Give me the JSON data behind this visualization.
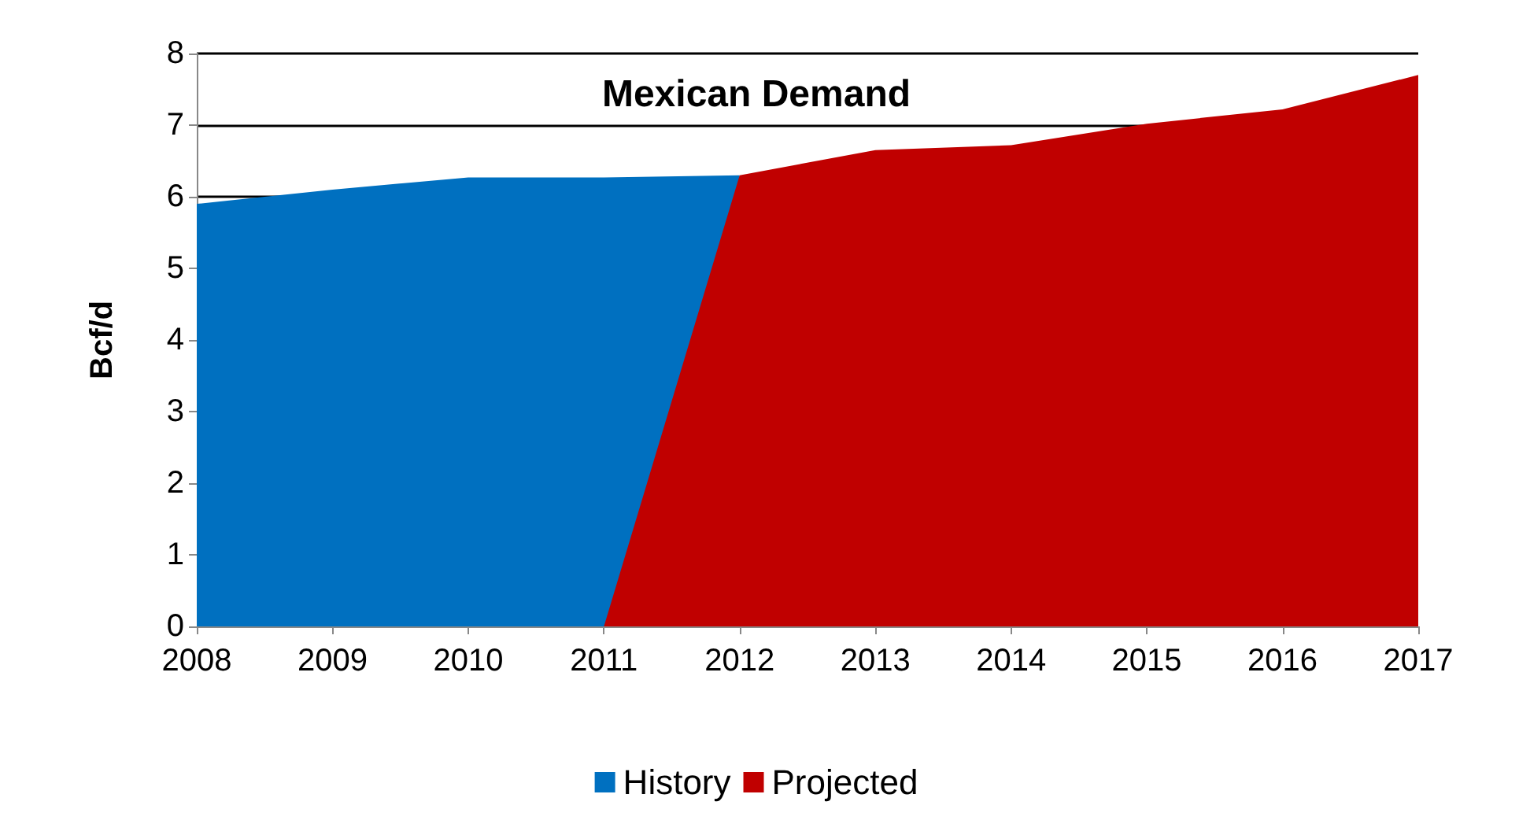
{
  "chart_data": {
    "type": "area",
    "title": "Mexican Demand",
    "ylabel": "Bcf/d",
    "categories": [
      "2008",
      "2009",
      "2010",
      "2011",
      "2012",
      "2013",
      "2014",
      "2015",
      "2016",
      "2017"
    ],
    "series": [
      {
        "name": "History",
        "color": "#0070c0",
        "values": [
          5.9,
          6.1,
          6.27,
          6.27,
          6.3,
          null,
          null,
          null,
          null,
          null
        ]
      },
      {
        "name": "Projected",
        "color": "#c00000",
        "values": [
          null,
          null,
          null,
          0,
          6.3,
          6.65,
          6.72,
          7.02,
          7.22,
          7.7
        ]
      }
    ],
    "ylim": [
      0,
      8
    ],
    "yticks": [
      0,
      1,
      2,
      3,
      4,
      5,
      6,
      7,
      8
    ],
    "grid": "y",
    "legend": "bottom"
  }
}
